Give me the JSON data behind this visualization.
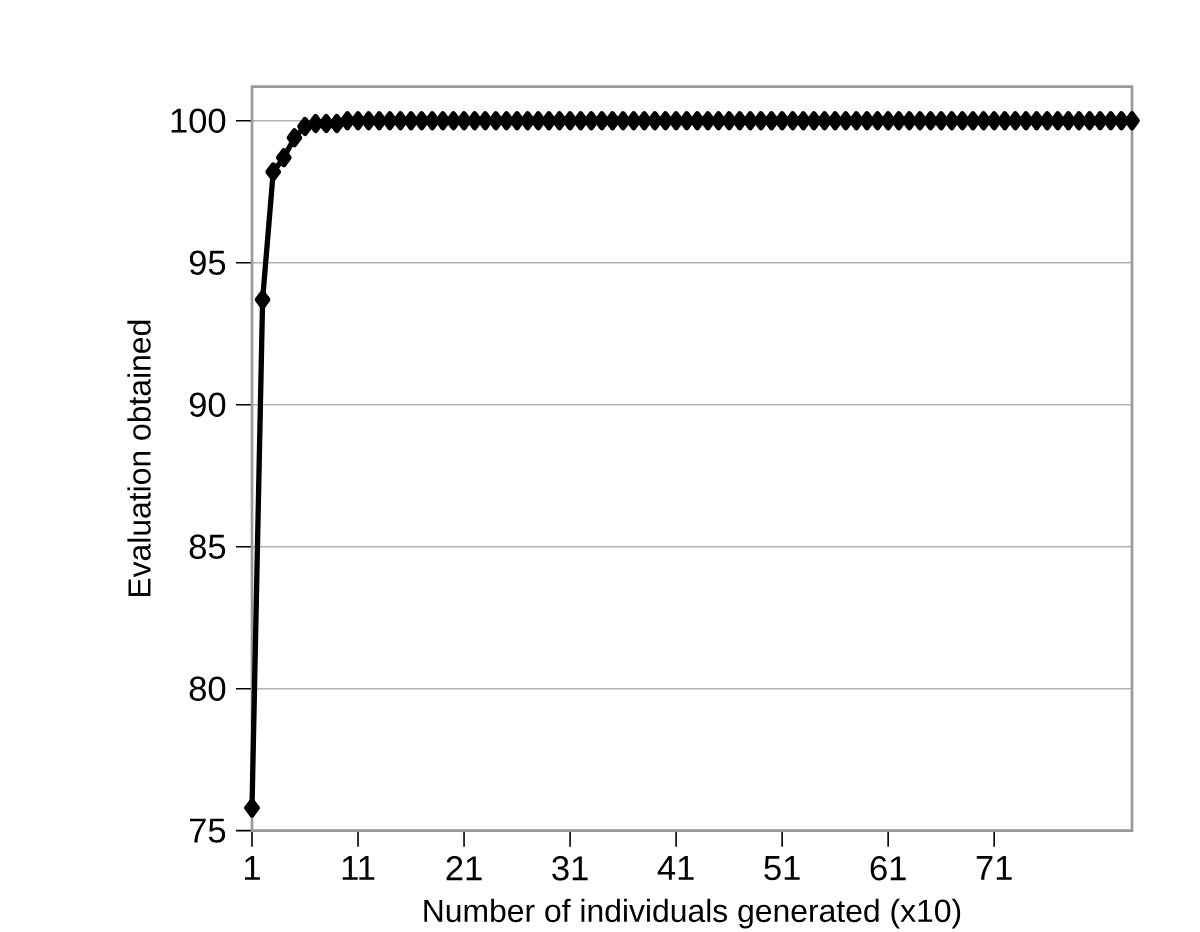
{
  "chart_data": {
    "type": "line",
    "xlabel": "Number of individuals generated (x10)",
    "ylabel": "Evaluation obtained",
    "x": [
      1,
      2,
      3,
      4,
      5,
      6,
      7,
      8,
      9,
      10,
      11,
      12,
      13,
      14,
      15,
      16,
      17,
      18,
      19,
      20,
      21,
      22,
      23,
      24,
      25,
      26,
      27,
      28,
      29,
      30,
      31,
      32,
      33,
      34,
      35,
      36,
      37,
      38,
      39,
      40,
      41,
      42,
      43,
      44,
      45,
      46,
      47,
      48,
      49,
      50,
      51,
      52,
      53,
      54,
      55,
      56,
      57,
      58,
      59,
      60,
      61,
      62,
      63,
      64,
      65,
      66,
      67,
      68,
      69,
      70,
      71,
      72,
      73,
      74,
      75,
      76,
      77,
      78,
      79,
      80,
      81,
      82,
      83,
      84
    ],
    "series": [
      {
        "color": "#000000",
        "values": [
          75.8,
          93.7,
          98.2,
          98.7,
          99.4,
          99.8,
          99.9,
          99.9,
          99.9,
          100,
          100,
          100,
          100,
          100,
          100,
          100,
          100,
          100,
          100,
          100,
          100,
          100,
          100,
          100,
          100,
          100,
          100,
          100,
          100,
          100,
          100,
          100,
          100,
          100,
          100,
          100,
          100,
          100,
          100,
          100,
          100,
          100,
          100,
          100,
          100,
          100,
          100,
          100,
          100,
          100,
          100,
          100,
          100,
          100,
          100,
          100,
          100,
          100,
          100,
          100,
          100,
          100,
          100,
          100,
          100,
          100,
          100,
          100,
          100,
          100,
          100,
          100,
          100,
          100,
          100,
          100,
          100,
          100,
          100,
          100,
          100,
          100,
          100,
          100
        ]
      }
    ],
    "xlim": [
      1,
      84
    ],
    "xticks": [
      1,
      11,
      21,
      31,
      41,
      51,
      61,
      71
    ],
    "ylim": [
      75,
      101.2
    ],
    "yticks": [
      75,
      80,
      85,
      90,
      95,
      100
    ],
    "grid": "y",
    "marker": "diamond",
    "line_style": "solid"
  }
}
